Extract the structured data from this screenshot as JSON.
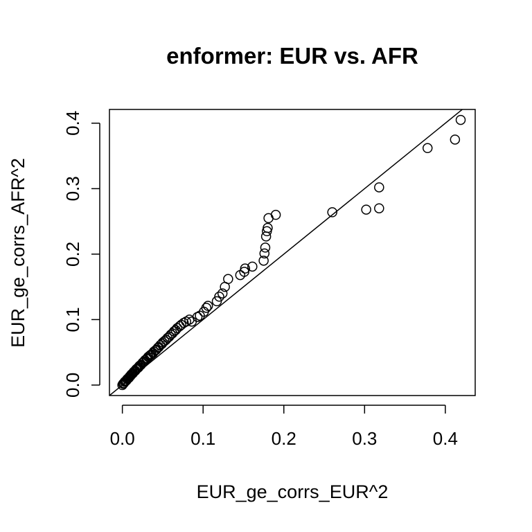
{
  "chart_data": {
    "type": "scatter",
    "title": "enformer: EUR vs. AFR",
    "xlabel": "EUR_ge_corrs_EUR^2",
    "ylabel": "EUR_ge_corrs_AFR^2",
    "xlim": [
      -0.016,
      0.437
    ],
    "ylim": [
      -0.016,
      0.421
    ],
    "xticks": [
      "0.0",
      "0.1",
      "0.2",
      "0.3",
      "0.4"
    ],
    "yticks": [
      "0.0",
      "0.1",
      "0.2",
      "0.3",
      "0.4"
    ],
    "reference_line": "y = x",
    "grid": false,
    "marker": "open-circle",
    "points": [
      [
        0.0,
        0.0
      ],
      [
        0.001,
        0.002
      ],
      [
        0.002,
        0.003
      ],
      [
        0.003,
        0.005
      ],
      [
        0.004,
        0.006
      ],
      [
        0.005,
        0.007
      ],
      [
        0.006,
        0.009
      ],
      [
        0.007,
        0.01
      ],
      [
        0.008,
        0.011
      ],
      [
        0.009,
        0.013
      ],
      [
        0.01,
        0.014
      ],
      [
        0.011,
        0.016
      ],
      [
        0.012,
        0.017
      ],
      [
        0.013,
        0.018
      ],
      [
        0.014,
        0.02
      ],
      [
        0.015,
        0.021
      ],
      [
        0.016,
        0.022
      ],
      [
        0.017,
        0.024
      ],
      [
        0.018,
        0.025
      ],
      [
        0.019,
        0.026
      ],
      [
        0.02,
        0.027
      ],
      [
        0.021,
        0.029
      ],
      [
        0.022,
        0.03
      ],
      [
        0.023,
        0.031
      ],
      [
        0.025,
        0.034
      ],
      [
        0.026,
        0.035
      ],
      [
        0.027,
        0.036
      ],
      [
        0.028,
        0.038
      ],
      [
        0.03,
        0.04
      ],
      [
        0.031,
        0.041
      ],
      [
        0.032,
        0.043
      ],
      [
        0.034,
        0.045
      ],
      [
        0.035,
        0.046
      ],
      [
        0.036,
        0.047
      ],
      [
        0.038,
        0.049
      ],
      [
        0.039,
        0.051
      ],
      [
        0.041,
        0.053
      ],
      [
        0.042,
        0.054
      ],
      [
        0.044,
        0.057
      ],
      [
        0.045,
        0.058
      ],
      [
        0.047,
        0.061
      ],
      [
        0.049,
        0.063
      ],
      [
        0.05,
        0.065
      ],
      [
        0.052,
        0.067
      ],
      [
        0.054,
        0.069
      ],
      [
        0.056,
        0.072
      ],
      [
        0.058,
        0.074
      ],
      [
        0.06,
        0.077
      ],
      [
        0.062,
        0.079
      ],
      [
        0.064,
        0.082
      ],
      [
        0.066,
        0.084
      ],
      [
        0.068,
        0.087
      ],
      [
        0.071,
        0.09
      ],
      [
        0.073,
        0.092
      ],
      [
        0.076,
        0.095
      ],
      [
        0.079,
        0.097
      ],
      [
        0.083,
        0.1
      ],
      [
        0.086,
        0.097
      ],
      [
        0.093,
        0.104
      ],
      [
        0.096,
        0.106
      ],
      [
        0.101,
        0.112
      ],
      [
        0.104,
        0.118
      ],
      [
        0.106,
        0.121
      ],
      [
        0.117,
        0.128
      ],
      [
        0.12,
        0.135
      ],
      [
        0.124,
        0.14
      ],
      [
        0.127,
        0.15
      ],
      [
        0.131,
        0.162
      ],
      [
        0.146,
        0.168
      ],
      [
        0.151,
        0.173
      ],
      [
        0.152,
        0.178
      ],
      [
        0.161,
        0.181
      ],
      [
        0.175,
        0.19
      ],
      [
        0.176,
        0.201
      ],
      [
        0.177,
        0.21
      ],
      [
        0.178,
        0.227
      ],
      [
        0.179,
        0.235
      ],
      [
        0.18,
        0.24
      ],
      [
        0.181,
        0.255
      ],
      [
        0.19,
        0.26
      ],
      [
        0.26,
        0.264
      ],
      [
        0.302,
        0.268
      ],
      [
        0.318,
        0.27
      ],
      [
        0.318,
        0.302
      ],
      [
        0.378,
        0.362
      ],
      [
        0.412,
        0.375
      ],
      [
        0.419,
        0.405
      ]
    ]
  }
}
